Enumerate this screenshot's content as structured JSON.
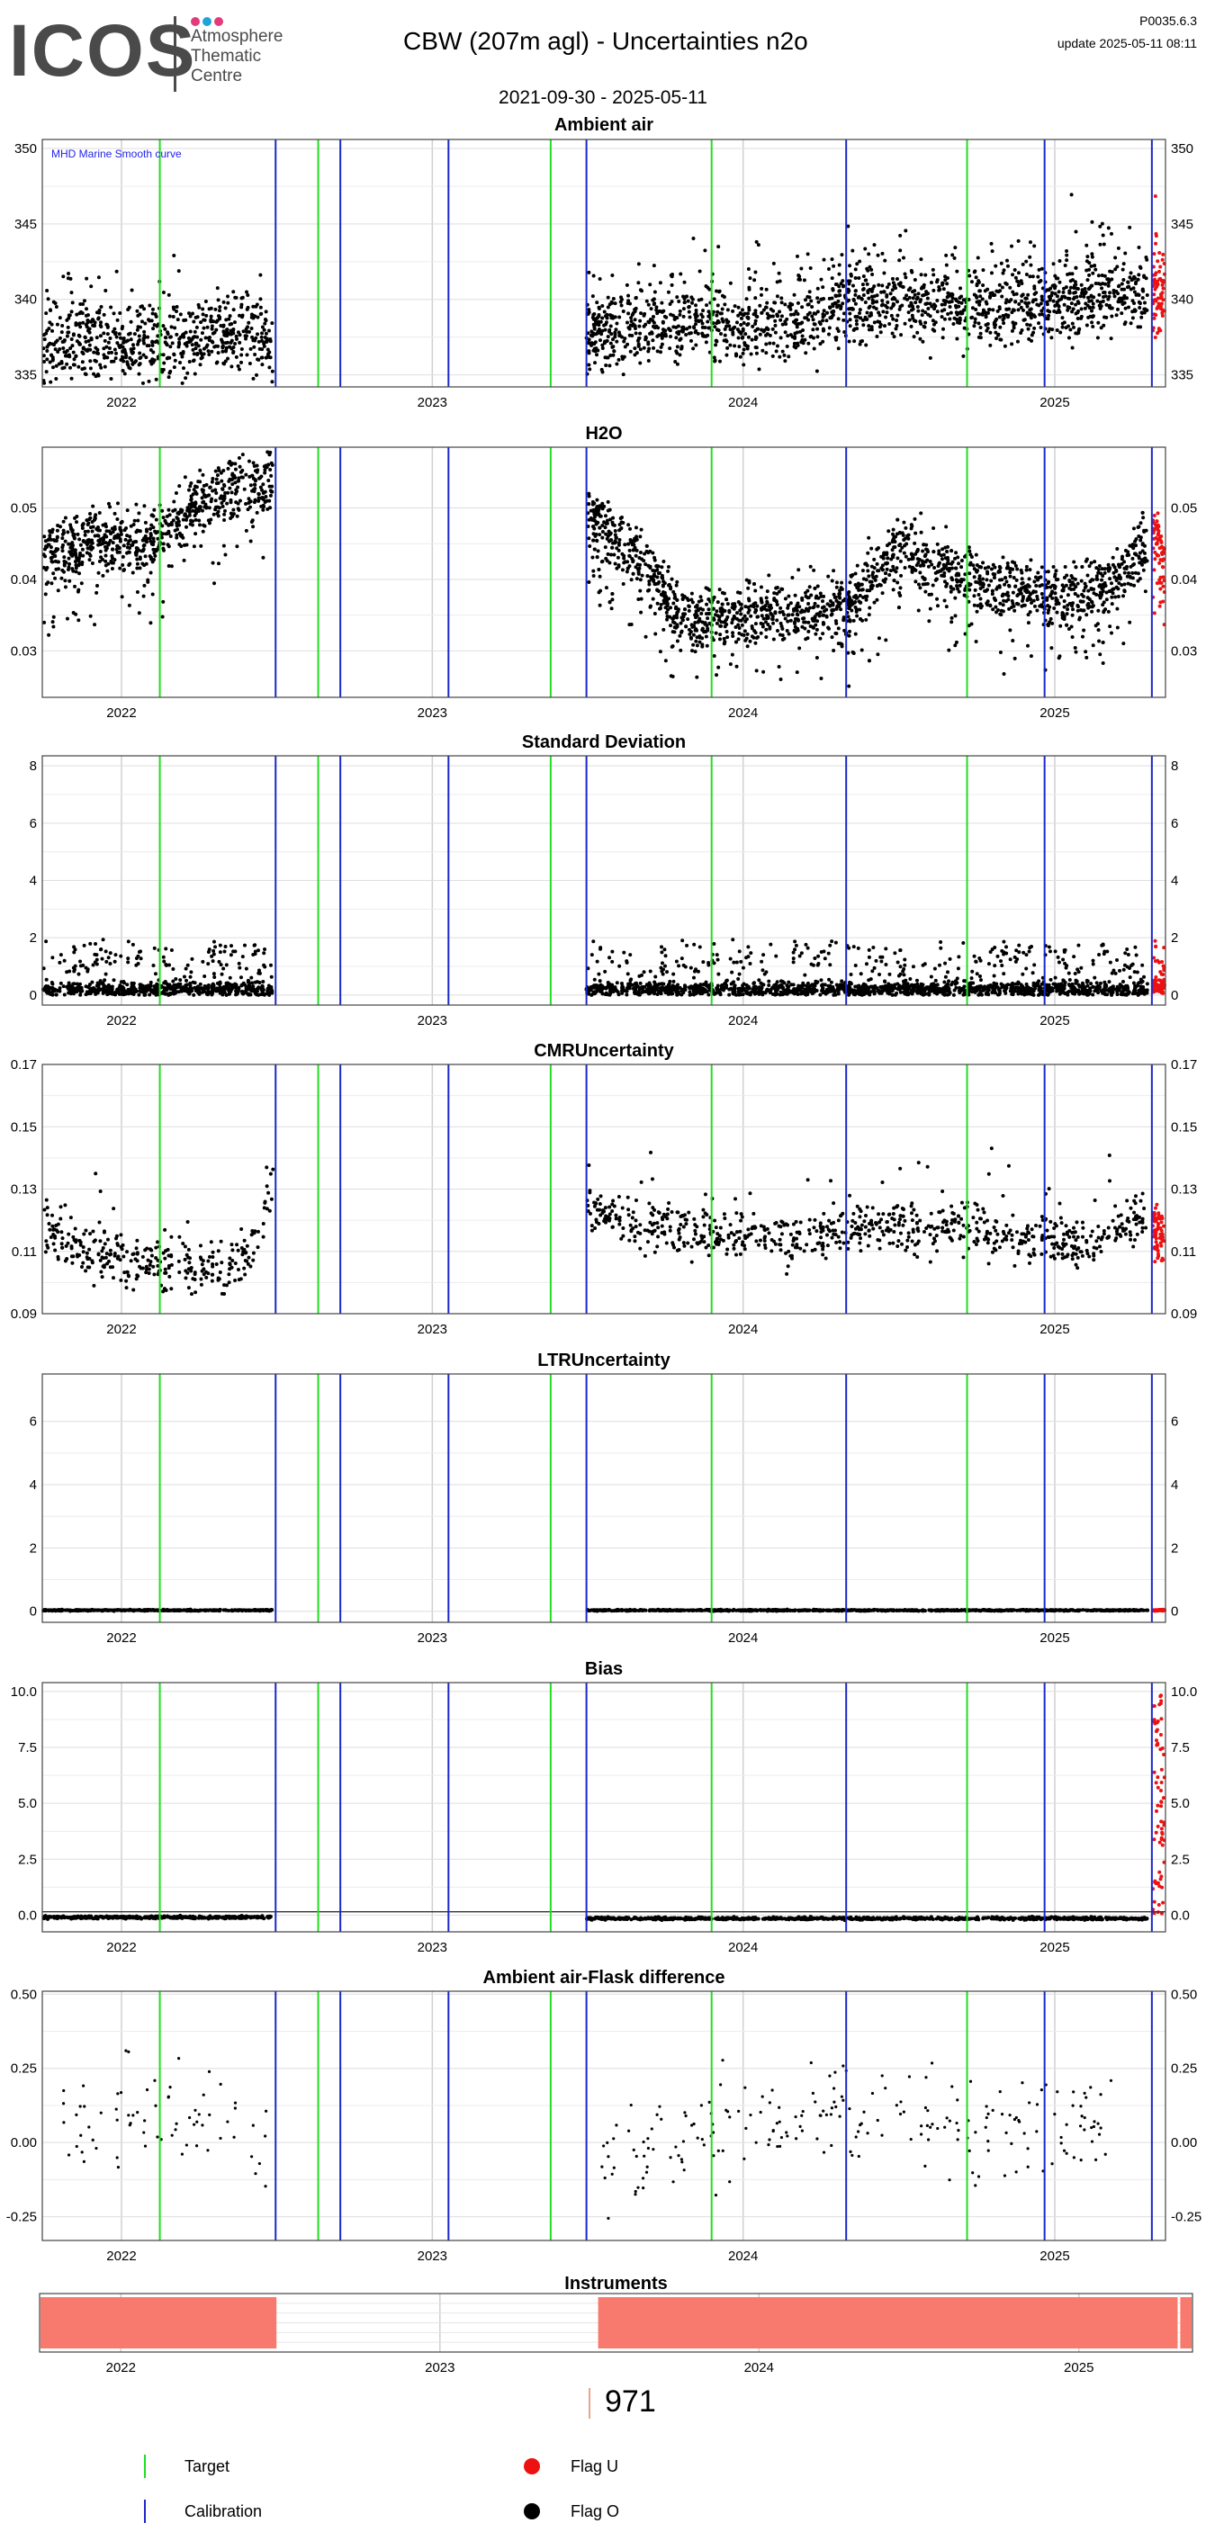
{
  "header": {
    "logo_text": "ICOS",
    "logo_sub": [
      "Atmosphere",
      "Thematic",
      "Centre"
    ],
    "logo_dot_colors": [
      "#e23a7a",
      "#1fa3d8",
      "#e23a7a"
    ],
    "title": "CBW  (207m agl) - Uncertainties n2o",
    "version": "P0035.6.3",
    "update": "update  2025-05-11 08:11",
    "date_range": "2021-09-30 - 2025-05-11"
  },
  "colors": {
    "target": "#22dd22",
    "calibration": "#1a28c8",
    "flag_u": "#ee1111",
    "flag_o": "#000000",
    "instrument": "#f87a6e",
    "grid": "#dddddd",
    "smooth_label": "#2222ee"
  },
  "events": {
    "target_dates": [
      "2022-02-15",
      "2022-08-20",
      "2023-05-20",
      "2023-11-25",
      "2024-09-20"
    ],
    "calibration_dates": [
      "2022-07-01",
      "2022-09-15",
      "2023-01-20",
      "2023-07-01",
      "2024-05-01",
      "2024-12-20",
      "2025-04-25"
    ]
  },
  "chart_data": [
    {
      "type": "scatter",
      "title": "Ambient air",
      "annotation": "MHD Marine Smooth curve",
      "x_range": [
        "2021-09-30",
        "2025-05-11"
      ],
      "xticks": [
        "2022",
        "2023",
        "2024",
        "2025"
      ],
      "ylim": [
        334.2,
        350.6
      ],
      "yticks": [
        335,
        340,
        345,
        350
      ],
      "grid": true,
      "series": [
        {
          "flag": "O",
          "segments": [
            {
              "x": [
                "2021-10-01",
                "2021-11-15",
                "2022-01-01",
                "2022-02-15",
                "2022-04-01",
                "2022-05-15",
                "2022-06-28"
              ],
              "y": [
                337.0,
                337.3,
                337.0,
                336.9,
                337.3,
                337.6,
                337.4
              ]
            },
            {
              "x": [
                "2023-07-01",
                "2023-09-01",
                "2023-11-01",
                "2024-01-01",
                "2024-03-01",
                "2024-05-01",
                "2024-07-01",
                "2024-09-01",
                "2024-11-01",
                "2025-01-01",
                "2025-03-01",
                "2025-04-20"
              ],
              "y": [
                337.5,
                338.2,
                338.5,
                338.2,
                338.6,
                339.6,
                340.0,
                339.6,
                339.5,
                339.8,
                340.2,
                340.3
              ]
            }
          ]
        },
        {
          "flag": "U",
          "segments": [
            {
              "x": [
                "2025-04-26",
                "2025-05-10"
              ],
              "y": [
                340.5,
                340.5
              ]
            }
          ]
        }
      ]
    },
    {
      "type": "scatter",
      "title": "H2O",
      "x_range": [
        "2021-09-30",
        "2025-05-11"
      ],
      "xticks": [
        "2022",
        "2023",
        "2024",
        "2025"
      ],
      "ylim": [
        0.0235,
        0.0585
      ],
      "yticks": [
        0.03,
        0.04,
        0.05
      ],
      "grid": true,
      "series": [
        {
          "flag": "O",
          "segments": [
            {
              "x": [
                "2021-10-01",
                "2021-12-01",
                "2022-02-01",
                "2022-04-01",
                "2022-06-28"
              ],
              "y": [
                0.043,
                0.046,
                0.045,
                0.051,
                0.054
              ]
            },
            {
              "x": [
                "2023-07-01",
                "2023-09-01",
                "2023-11-01",
                "2024-01-01",
                "2024-03-01",
                "2024-05-01",
                "2024-07-01",
                "2024-09-01",
                "2024-11-01",
                "2025-01-01",
                "2025-03-01",
                "2025-04-20"
              ],
              "y": [
                0.049,
                0.043,
                0.034,
                0.035,
                0.036,
                0.036,
                0.045,
                0.041,
                0.039,
                0.037,
                0.039,
                0.045
              ]
            }
          ]
        },
        {
          "flag": "U",
          "segments": [
            {
              "x": [
                "2025-04-26",
                "2025-05-10"
              ],
              "y": [
                0.047,
                0.042
              ]
            }
          ]
        }
      ]
    },
    {
      "type": "scatter",
      "title": "Standard Deviation",
      "x_range": [
        "2021-09-30",
        "2025-05-11"
      ],
      "xticks": [
        "2022",
        "2023",
        "2024",
        "2025"
      ],
      "ylim": [
        -0.35,
        8.35
      ],
      "yticks": [
        0,
        2,
        4,
        6,
        8
      ],
      "grid": true,
      "series": [
        {
          "flag": "O",
          "segments": [
            {
              "x": [
                "2021-10-01",
                "2022-06-28"
              ],
              "y": [
                0.2,
                0.2
              ]
            },
            {
              "x": [
                "2023-07-01",
                "2025-04-20"
              ],
              "y": [
                0.2,
                0.2
              ]
            }
          ]
        },
        {
          "flag": "U",
          "segments": [
            {
              "x": [
                "2025-04-26",
                "2025-05-10"
              ],
              "y": [
                0.3,
                0.3
              ]
            }
          ]
        }
      ]
    },
    {
      "type": "scatter",
      "title": "CMRUncertainty",
      "x_range": [
        "2021-09-30",
        "2025-05-11"
      ],
      "xticks": [
        "2022",
        "2023",
        "2024",
        "2025"
      ],
      "ylim": [
        0.09,
        0.17
      ],
      "yticks": [
        0.09,
        0.11,
        0.13,
        0.15,
        0.17
      ],
      "grid": true,
      "series": [
        {
          "flag": "O",
          "segments": [
            {
              "x": [
                "2021-10-01",
                "2021-11-15",
                "2022-01-01",
                "2022-03-01",
                "2022-05-01",
                "2022-06-01",
                "2022-06-28"
              ],
              "y": [
                0.119,
                0.11,
                0.107,
                0.106,
                0.103,
                0.11,
                0.13
              ]
            },
            {
              "x": [
                "2023-07-01",
                "2023-09-01",
                "2023-12-01",
                "2024-03-01",
                "2024-06-01",
                "2024-09-01",
                "2024-12-01",
                "2025-02-01",
                "2025-04-20"
              ],
              "y": [
                0.124,
                0.119,
                0.116,
                0.114,
                0.118,
                0.119,
                0.114,
                0.112,
                0.12
              ]
            }
          ]
        },
        {
          "flag": "U",
          "segments": [
            {
              "x": [
                "2025-04-26",
                "2025-05-10"
              ],
              "y": [
                0.118,
                0.115
              ]
            }
          ]
        }
      ]
    },
    {
      "type": "scatter",
      "title": "LTRUncertainty",
      "x_range": [
        "2021-09-30",
        "2025-05-11"
      ],
      "xticks": [
        "2022",
        "2023",
        "2024",
        "2025"
      ],
      "ylim": [
        -0.35,
        7.5
      ],
      "yticks": [
        0,
        2,
        4,
        6
      ],
      "grid": true,
      "series": [
        {
          "flag": "O",
          "segments": [
            {
              "x": [
                "2021-10-01",
                "2022-06-28"
              ],
              "y": [
                0.03,
                0.03
              ]
            },
            {
              "x": [
                "2023-07-01",
                "2025-04-20"
              ],
              "y": [
                0.03,
                0.03
              ]
            }
          ]
        },
        {
          "flag": "U",
          "segments": [
            {
              "x": [
                "2025-04-26",
                "2025-05-10"
              ],
              "y": [
                0.03,
                0.03
              ]
            }
          ]
        }
      ]
    },
    {
      "type": "scatter",
      "title": "Bias",
      "x_range": [
        "2021-09-30",
        "2025-05-11"
      ],
      "xticks": [
        "2022",
        "2023",
        "2024",
        "2025"
      ],
      "ylim": [
        -0.75,
        10.4
      ],
      "yticks": [
        0.0,
        2.5,
        5.0,
        7.5,
        10.0
      ],
      "ytick_labels": [
        "0.0",
        "2.5",
        "5.0",
        "7.5",
        "10.0"
      ],
      "grid": true,
      "series": [
        {
          "flag": "O",
          "segments": [
            {
              "x": [
                "2021-10-01",
                "2022-06-28"
              ],
              "y": [
                -0.1,
                -0.1
              ]
            },
            {
              "x": [
                "2023-07-01",
                "2025-04-20"
              ],
              "y": [
                -0.15,
                -0.15
              ]
            }
          ]
        },
        {
          "flag": "U",
          "segments": [
            {
              "x": [
                "2025-04-26",
                "2025-05-10"
              ],
              "y": [
                0.0,
                10.0
              ]
            }
          ]
        }
      ]
    },
    {
      "type": "scatter",
      "title": "Ambient air-Flask difference",
      "x_range": [
        "2021-09-30",
        "2025-05-11"
      ],
      "xticks": [
        "2022",
        "2023",
        "2024",
        "2025"
      ],
      "ylim": [
        -0.33,
        0.51
      ],
      "yticks": [
        -0.25,
        0.0,
        0.25,
        0.5
      ],
      "ytick_labels": [
        "-0.25",
        "0.00",
        "0.25",
        "0.50"
      ],
      "grid": true,
      "series": [
        {
          "flag": "O",
          "segments": [
            {
              "x": [
                "2021-10-15",
                "2022-01-01",
                "2022-03-01",
                "2022-05-01",
                "2022-06-28"
              ],
              "y": [
                0.05,
                0.1,
                0.12,
                0.08,
                -0.05
              ]
            },
            {
              "x": [
                "2023-07-15",
                "2023-10-01",
                "2024-01-01",
                "2024-04-01",
                "2024-07-01",
                "2024-10-01",
                "2025-01-01",
                "2025-03-15"
              ],
              "y": [
                -0.05,
                0.0,
                0.08,
                0.1,
                0.15,
                0.05,
                0.05,
                0.1
              ]
            }
          ]
        }
      ]
    },
    {
      "type": "timeline",
      "title": "Instruments",
      "x_range": [
        "2021-09-30",
        "2025-05-11"
      ],
      "xticks": [
        "2022",
        "2023",
        "2024",
        "2025"
      ],
      "periods": [
        {
          "start": "2021-10-01",
          "end": "2022-06-28"
        },
        {
          "start": "2023-07-01",
          "end": "2025-04-24"
        },
        {
          "start": "2025-04-27",
          "end": "2025-05-10"
        }
      ],
      "instrument_count": "971"
    }
  ],
  "legend": {
    "target_label": "Target",
    "calibration_label": "Calibration",
    "flag_u_label": "Flag U",
    "flag_o_label": "Flag O"
  }
}
